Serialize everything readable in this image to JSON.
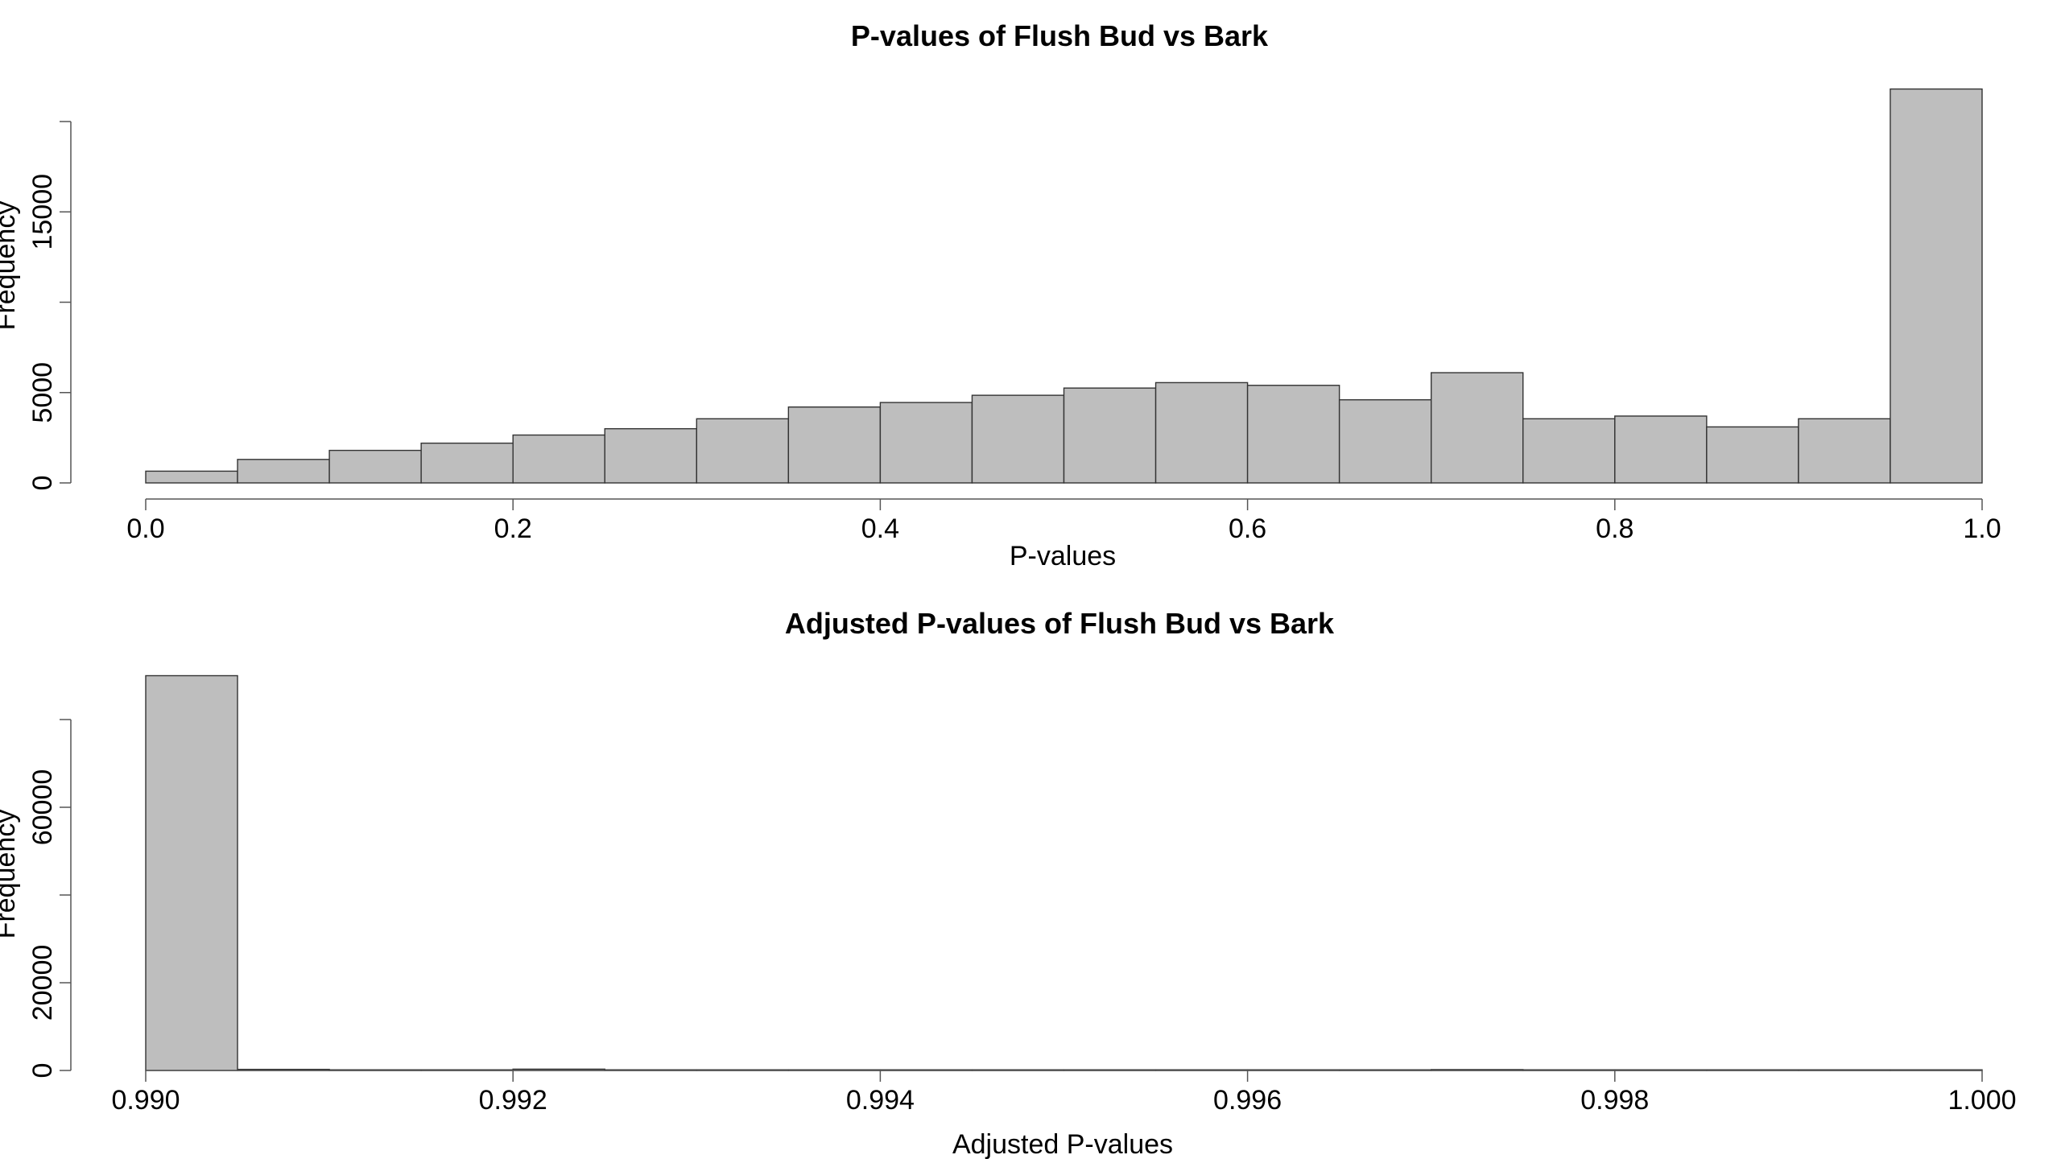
{
  "chart_data": [
    {
      "type": "bar",
      "title": "P-values of Flush Bud vs Bark",
      "xlabel": "P-values",
      "ylabel": "Frequency",
      "bin_edges": [
        0.0,
        0.05,
        0.1,
        0.15,
        0.2,
        0.25,
        0.3,
        0.35,
        0.4,
        0.45,
        0.5,
        0.55,
        0.6,
        0.65,
        0.7,
        0.75,
        0.8,
        0.85,
        0.9,
        0.95,
        1.0
      ],
      "values": [
        650,
        1300,
        1800,
        2200,
        2650,
        3000,
        3550,
        4200,
        4450,
        4850,
        5250,
        5550,
        5400,
        4600,
        6100,
        3550,
        3700,
        3100,
        3550,
        21800
      ],
      "xlim": [
        0.0,
        1.0
      ],
      "ylim": [
        0,
        20000
      ],
      "xticks": [
        0.0,
        0.2,
        0.4,
        0.6,
        0.8,
        1.0
      ],
      "xtick_labels": [
        "0.0",
        "0.2",
        "0.4",
        "0.6",
        "0.8",
        "1.0"
      ],
      "yticks": [
        0,
        5000,
        10000,
        15000,
        20000
      ],
      "ytick_labels": [
        "0",
        "5000",
        "",
        "15000",
        ""
      ],
      "grid": false,
      "bar_color": "#bebebe",
      "edge_color": "#333333"
    },
    {
      "type": "bar",
      "title": "Adjusted P-values of Flush Bud vs Bark",
      "xlabel": "Adjusted P-values",
      "ylabel": "Frequency",
      "bin_edges": [
        0.99,
        0.9905,
        0.991,
        0.9915,
        0.992,
        0.9925,
        0.993,
        0.9935,
        0.994,
        0.9945,
        0.995,
        0.9955,
        0.996,
        0.9965,
        0.997,
        0.9975,
        0.998,
        0.9985,
        0.999,
        0.9995,
        1.0
      ],
      "values": [
        90000,
        250,
        150,
        150,
        300,
        150,
        150,
        150,
        150,
        150,
        150,
        150,
        150,
        150,
        200,
        150,
        150,
        150,
        150,
        150
      ],
      "xlim": [
        0.99,
        1.0
      ],
      "ylim": [
        0,
        80000
      ],
      "xticks": [
        0.99,
        0.992,
        0.994,
        0.996,
        0.998,
        1.0
      ],
      "xtick_labels": [
        "0.990",
        "0.992",
        "0.994",
        "0.996",
        "0.998",
        "1.000"
      ],
      "yticks": [
        0,
        20000,
        40000,
        60000,
        80000
      ],
      "ytick_labels": [
        "0",
        "20000",
        "",
        "60000",
        ""
      ],
      "grid": false,
      "bar_color": "#bebebe",
      "edge_color": "#333333"
    }
  ]
}
